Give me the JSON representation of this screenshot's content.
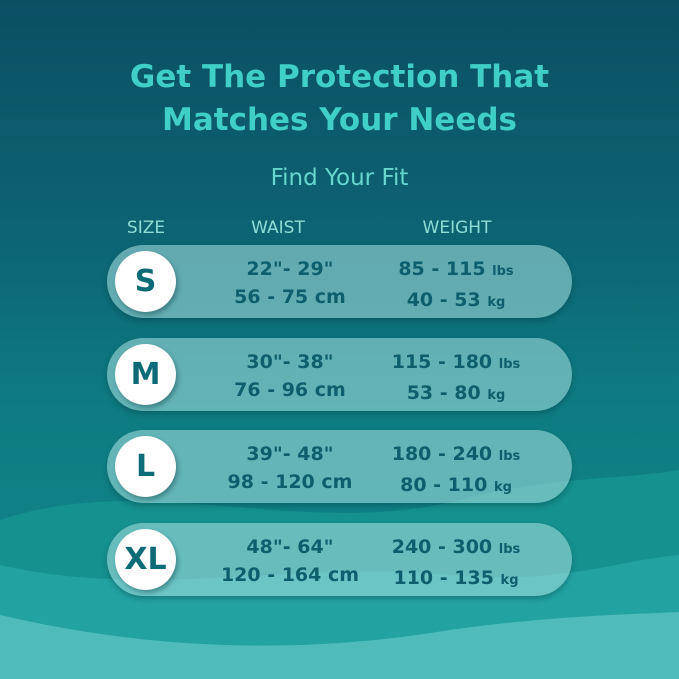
{
  "title_lines": [
    "Get The Protection That",
    "Matches Your Needs"
  ],
  "subtitle": "Find Your Fit",
  "headers": {
    "size": "SIZE",
    "waist": "WAIST",
    "weight": "WEIGHT"
  },
  "rows": [
    {
      "size": "S",
      "waist_in": "22\"- 29\"",
      "waist_cm": "56 - 75",
      "waist_cm_unit": "cm",
      "weight_lbs": "85 - 115",
      "lbs_unit": "lbs",
      "weight_kg": "40 - 53",
      "kg_unit": "kg"
    },
    {
      "size": "M",
      "waist_in": "30\"- 38\"",
      "waist_cm": "76 - 96",
      "waist_cm_unit": "cm",
      "weight_lbs": "115 - 180",
      "lbs_unit": "lbs",
      "weight_kg": "53 - 80",
      "kg_unit": "kg"
    },
    {
      "size": "L",
      "waist_in": "39\"- 48\"",
      "waist_cm": "98 - 120",
      "waist_cm_unit": "cm",
      "weight_lbs": "180 - 240",
      "lbs_unit": "lbs",
      "weight_kg": "80 - 110",
      "kg_unit": "kg"
    },
    {
      "size": "XL",
      "waist_in": "48\"- 64\"",
      "waist_cm": "120 - 164",
      "waist_cm_unit": "cm",
      "weight_lbs": "240 - 300",
      "lbs_unit": "lbs",
      "weight_kg": "110 - 135",
      "kg_unit": "kg"
    }
  ],
  "colors": {
    "title": "#3fcfc6",
    "row_text": "#0e5f6d",
    "bg_dark": "#0b4f63",
    "wave_light": "#5bbfbf"
  }
}
